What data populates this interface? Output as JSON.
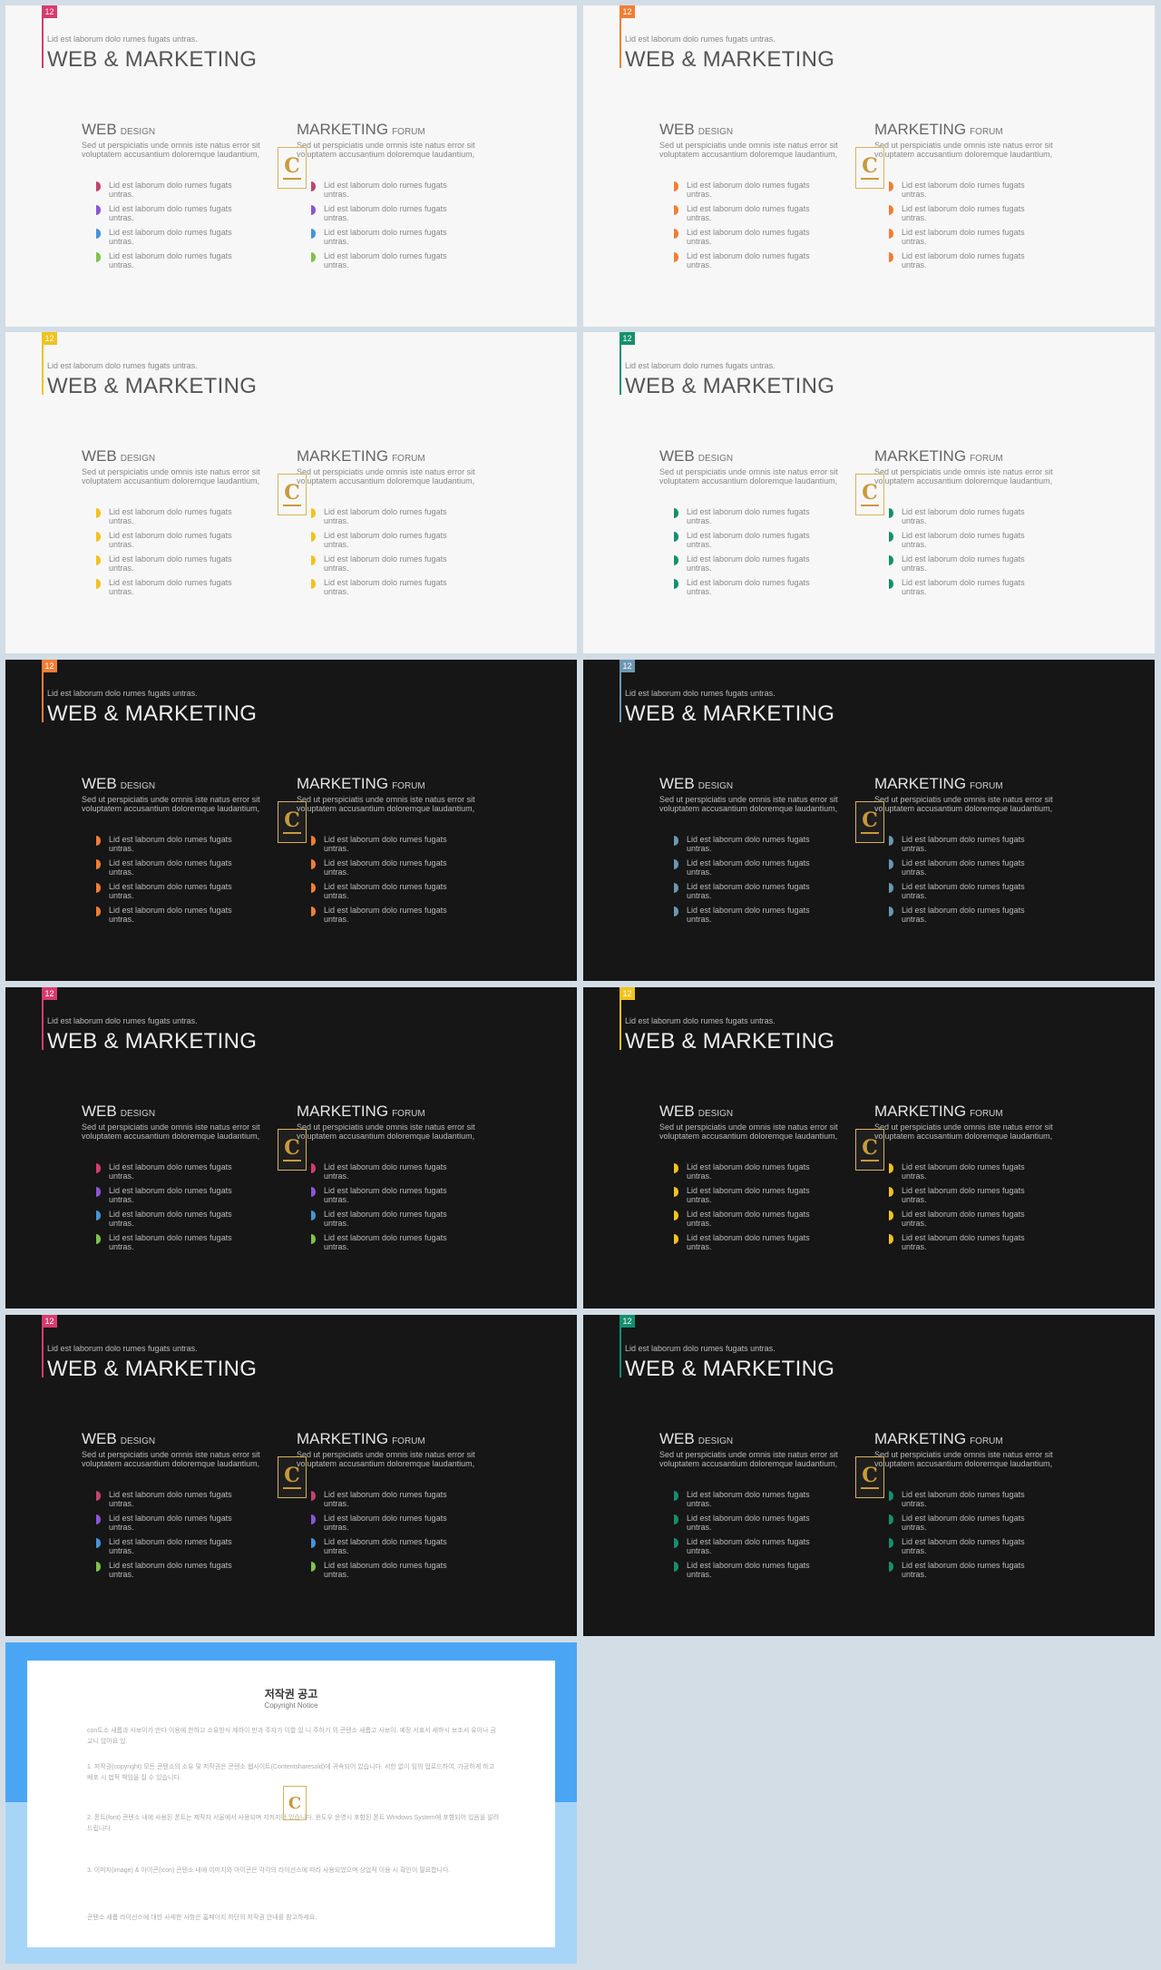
{
  "slides": [
    {
      "theme": "light",
      "number": "12",
      "accent": "#d83b6e",
      "bullet_colors": [
        "#c2436f",
        "#8b55d6",
        "#4495d9",
        "#7fc24a"
      ]
    },
    {
      "theme": "light",
      "number": "12",
      "accent": "#f07e34",
      "bullet_colors": [
        "#f07e34",
        "#f07e34",
        "#f07e34",
        "#f07e34"
      ]
    },
    {
      "theme": "light",
      "number": "12",
      "accent": "#f2c21e",
      "bullet_colors": [
        "#f2c21e",
        "#f2c21e",
        "#f2c21e",
        "#f2c21e"
      ]
    },
    {
      "theme": "light",
      "number": "12",
      "accent": "#14906e",
      "bullet_colors": [
        "#14906e",
        "#14906e",
        "#14906e",
        "#14906e"
      ]
    },
    {
      "theme": "dark",
      "number": "12",
      "accent": "#f07e34",
      "bullet_colors": [
        "#f07e34",
        "#f07e34",
        "#f07e34",
        "#f07e34"
      ]
    },
    {
      "theme": "dark",
      "number": "12",
      "accent": "#6c97b3",
      "bullet_colors": [
        "#6c97b3",
        "#6c97b3",
        "#6c97b3",
        "#6c97b3"
      ]
    },
    {
      "theme": "dark",
      "number": "12",
      "accent": "#d83b6e",
      "bullet_colors": [
        "#d83b6e",
        "#8b55d6",
        "#4495d9",
        "#7fc24a"
      ]
    },
    {
      "theme": "dark",
      "number": "12",
      "accent": "#f2c21e",
      "bullet_colors": [
        "#f2c21e",
        "#f2c21e",
        "#f2c21e",
        "#f2c21e"
      ]
    },
    {
      "theme": "dark",
      "number": "12",
      "accent": "#d83b6e",
      "bullet_colors": [
        "#c2436f",
        "#8b55d6",
        "#4495d9",
        "#7fc24a"
      ]
    },
    {
      "theme": "dark",
      "number": "12",
      "accent": "#14906e",
      "bullet_colors": [
        "#14906e",
        "#14906e",
        "#14906e",
        "#14906e"
      ]
    }
  ],
  "content": {
    "subtitle": "Lid est laborum dolo rumes fugats untras.",
    "title": "WEB & MARKETING",
    "col1_big": "WEB",
    "col1_small": "DESIGN",
    "col2_big": "MARKETING",
    "col2_small": "FORUM",
    "desc": "Sed ut perspiciatis unde omnis iste natus error sit voluptatem accusantium doloremque laudantium,",
    "bullet": "Lid est laborum dolo rumes fugats untras."
  },
  "logo_letter": "C",
  "copyright": {
    "title": "저작권 공고",
    "subtitle": "Copyright Notice",
    "p1": "con트소 새롭과 사보이가 만다 이용에 한하고 소유방식 제하이 만과 주자가 이할 있 니 주하기 의 콘텐소 새롭고 사보이. 예정 서표서 세하시 보조서 유이나 금교니 않아요 있.",
    "p2": "1. 저작권(copyright) 모든 콘텐소의 소유 및 저작권은 콘텐소 웹사이트(Contentsharesold)에 귀속되어 있습니다. 서한 없이 임의 업로드하여, 가공하게 하고 배포 시 법적 책임을 질 수 있습니다.",
    "p3": "2. 폰트(font) 콘텐소 내에 사용된 폰트는 제작자 서울에서 사용되며 지켜지어 있습니다. 윈도우 운영시 포함된 폰트 Windows System에 포함되어 있음을 알려드립니다.",
    "p4": "3. 이미지(image) & 아이콘(icon) 콘텐소 내에 이미지와 아이콘은 각각의 라이선스에 따라 사용되었으며 상업적 이용 시 확인이 필요합니다.",
    "p5": "콘텐소 새롭 라이선스에 대한 사세한 사항은 홈페이지 하단의 저작권 안내를 참고하세요."
  }
}
